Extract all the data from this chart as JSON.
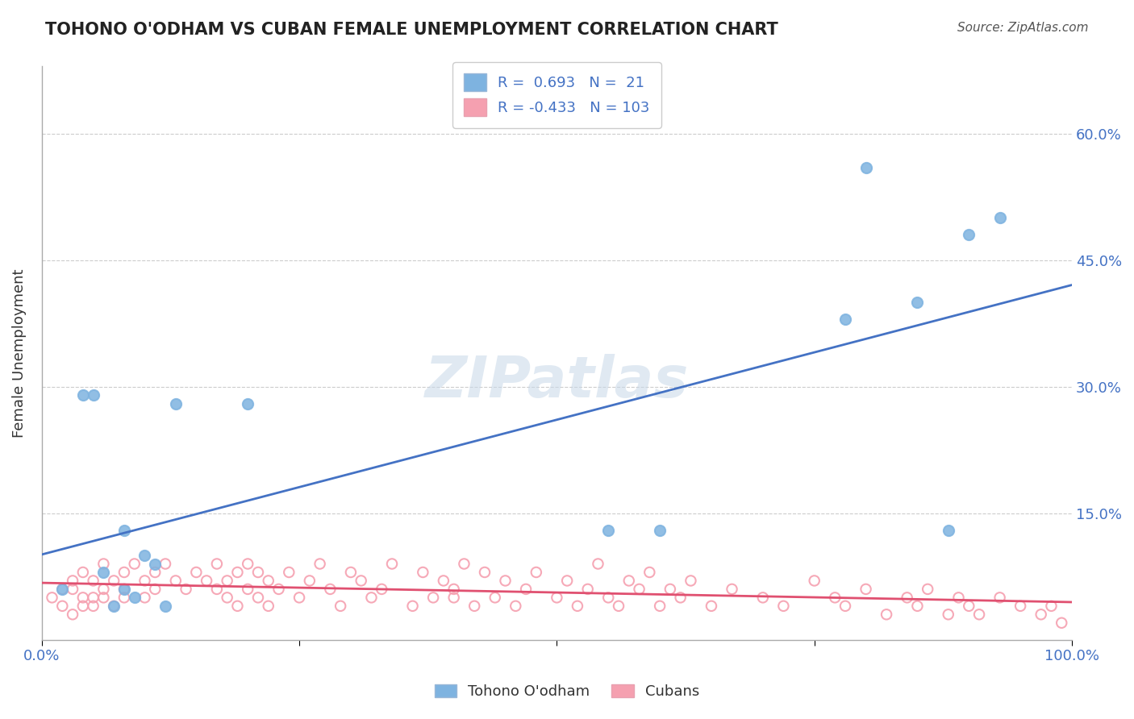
{
  "title": "TOHONO O'ODHAM VS CUBAN FEMALE UNEMPLOYMENT CORRELATION CHART",
  "source_text": "Source: ZipAtlas.com",
  "xlabel": "",
  "ylabel": "Female Unemployment",
  "xlim": [
    0.0,
    1.0
  ],
  "ylim": [
    0.0,
    0.68
  ],
  "yticks": [
    0.0,
    0.15,
    0.3,
    0.45,
    0.6
  ],
  "ytick_labels": [
    "",
    "15.0%",
    "30.0%",
    "45.0%",
    "60.0%"
  ],
  "xticks": [
    0.0,
    0.25,
    0.5,
    0.75,
    1.0
  ],
  "xtick_labels": [
    "0.0%",
    "",
    "",
    "",
    "100.0%"
  ],
  "background_color": "#ffffff",
  "grid_color": "#cccccc",
  "tohono_color": "#7eb3e0",
  "cuban_color": "#f5a0b0",
  "tohono_line_color": "#4472c4",
  "cuban_line_color": "#e05070",
  "legend_R1": "0.693",
  "legend_N1": "21",
  "legend_R2": "-0.433",
  "legend_N2": "103",
  "watermark": "ZIPatlas",
  "tohono_label": "Tohono O'odham",
  "cuban_label": "Cubans",
  "tohono_x": [
    0.02,
    0.04,
    0.05,
    0.06,
    0.07,
    0.08,
    0.08,
    0.09,
    0.1,
    0.11,
    0.12,
    0.13,
    0.2,
    0.55,
    0.6,
    0.78,
    0.8,
    0.85,
    0.88,
    0.9,
    0.93
  ],
  "tohono_y": [
    0.06,
    0.29,
    0.29,
    0.08,
    0.04,
    0.13,
    0.06,
    0.05,
    0.1,
    0.09,
    0.04,
    0.28,
    0.28,
    0.13,
    0.13,
    0.38,
    0.56,
    0.4,
    0.13,
    0.48,
    0.5
  ],
  "cuban_x": [
    0.01,
    0.02,
    0.02,
    0.03,
    0.03,
    0.03,
    0.04,
    0.04,
    0.04,
    0.05,
    0.05,
    0.05,
    0.06,
    0.06,
    0.06,
    0.07,
    0.07,
    0.08,
    0.08,
    0.08,
    0.09,
    0.1,
    0.1,
    0.11,
    0.11,
    0.12,
    0.13,
    0.14,
    0.15,
    0.16,
    0.17,
    0.17,
    0.18,
    0.18,
    0.19,
    0.19,
    0.2,
    0.2,
    0.21,
    0.21,
    0.22,
    0.22,
    0.23,
    0.24,
    0.25,
    0.26,
    0.27,
    0.28,
    0.29,
    0.3,
    0.31,
    0.32,
    0.33,
    0.34,
    0.36,
    0.37,
    0.38,
    0.39,
    0.4,
    0.41,
    0.42,
    0.43,
    0.44,
    0.45,
    0.46,
    0.47,
    0.48,
    0.5,
    0.51,
    0.52,
    0.53,
    0.54,
    0.55,
    0.56,
    0.57,
    0.58,
    0.59,
    0.6,
    0.61,
    0.62,
    0.63,
    0.65,
    0.67,
    0.7,
    0.72,
    0.75,
    0.77,
    0.78,
    0.8,
    0.82,
    0.84,
    0.85,
    0.86,
    0.88,
    0.89,
    0.9,
    0.91,
    0.93,
    0.95,
    0.97,
    0.98,
    0.99,
    0.4
  ],
  "cuban_y": [
    0.05,
    0.04,
    0.06,
    0.03,
    0.07,
    0.06,
    0.05,
    0.08,
    0.04,
    0.07,
    0.05,
    0.04,
    0.09,
    0.05,
    0.06,
    0.04,
    0.07,
    0.08,
    0.05,
    0.06,
    0.09,
    0.07,
    0.05,
    0.08,
    0.06,
    0.09,
    0.07,
    0.06,
    0.08,
    0.07,
    0.06,
    0.09,
    0.05,
    0.07,
    0.08,
    0.04,
    0.09,
    0.06,
    0.05,
    0.08,
    0.07,
    0.04,
    0.06,
    0.08,
    0.05,
    0.07,
    0.09,
    0.06,
    0.04,
    0.08,
    0.07,
    0.05,
    0.06,
    0.09,
    0.04,
    0.08,
    0.05,
    0.07,
    0.06,
    0.09,
    0.04,
    0.08,
    0.05,
    0.07,
    0.04,
    0.06,
    0.08,
    0.05,
    0.07,
    0.04,
    0.06,
    0.09,
    0.05,
    0.04,
    0.07,
    0.06,
    0.08,
    0.04,
    0.06,
    0.05,
    0.07,
    0.04,
    0.06,
    0.05,
    0.04,
    0.07,
    0.05,
    0.04,
    0.06,
    0.03,
    0.05,
    0.04,
    0.06,
    0.03,
    0.05,
    0.04,
    0.03,
    0.05,
    0.04,
    0.03,
    0.04,
    0.02,
    0.05
  ],
  "tohono_line_x": [
    0.0,
    1.0
  ],
  "tohono_line_y_start": 0.085,
  "tohono_line_y_end": 0.395,
  "cuban_line_y_start": 0.065,
  "cuban_line_y_end": 0.025
}
